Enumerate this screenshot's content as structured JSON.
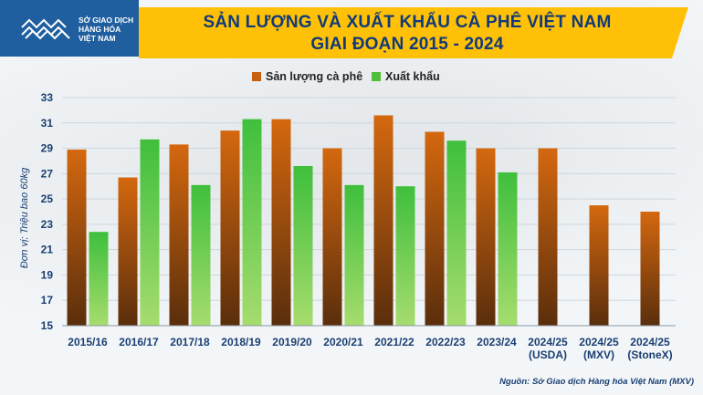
{
  "logo": {
    "line1": "SỞ GIAO DỊCH",
    "line2": "HÀNG HÓA",
    "line3": "VIỆT NAM"
  },
  "title": {
    "line1": "SẢN LƯỢNG VÀ XUẤT KHẨU CÀ PHÊ VIỆT NAM",
    "line2": "GIAI ĐOẠN 2015 - 2024"
  },
  "source": "Nguồn: Sở Giao dịch Hàng hóa Việt Nam (MXV)",
  "colors": {
    "production": "#c8610f",
    "export": "#4fbf3a",
    "title_bg": "#ffc107",
    "title_text": "#103a7a",
    "logo_bg": "#1f5f9f"
  },
  "chart_data": {
    "type": "bar",
    "title": "SẢN LƯỢNG VÀ XUẤT KHẨU CÀ PHÊ VIỆT NAM GIAI ĐOẠN 2015 - 2024",
    "ylabel": "Đơn vị: Triệu bao 60kg",
    "xlabel": "",
    "ylim": [
      15,
      33
    ],
    "yticks": [
      15,
      17,
      19,
      21,
      23,
      25,
      27,
      29,
      31,
      33
    ],
    "grid": true,
    "legend_position": "top-center",
    "categories": [
      [
        "2015/16"
      ],
      [
        "2016/17"
      ],
      [
        "2017/18"
      ],
      [
        "2018/19"
      ],
      [
        "2019/20"
      ],
      [
        "2020/21"
      ],
      [
        "2021/22"
      ],
      [
        "2022/23"
      ],
      [
        "2023/24"
      ],
      [
        "2024/25",
        "(USDA)"
      ],
      [
        "2024/25",
        "(MXV)"
      ],
      [
        "2024/25",
        "(StoneX)"
      ]
    ],
    "series": [
      {
        "name": "Sản lượng cà phê",
        "values": [
          28.9,
          26.7,
          29.3,
          30.4,
          31.3,
          29.0,
          31.6,
          30.3,
          29.0,
          29.0,
          24.5,
          24.0
        ]
      },
      {
        "name": "Xuất khẩu",
        "values": [
          22.4,
          29.7,
          26.1,
          31.3,
          27.6,
          26.1,
          26.0,
          29.6,
          27.1,
          null,
          null,
          null
        ]
      }
    ]
  }
}
